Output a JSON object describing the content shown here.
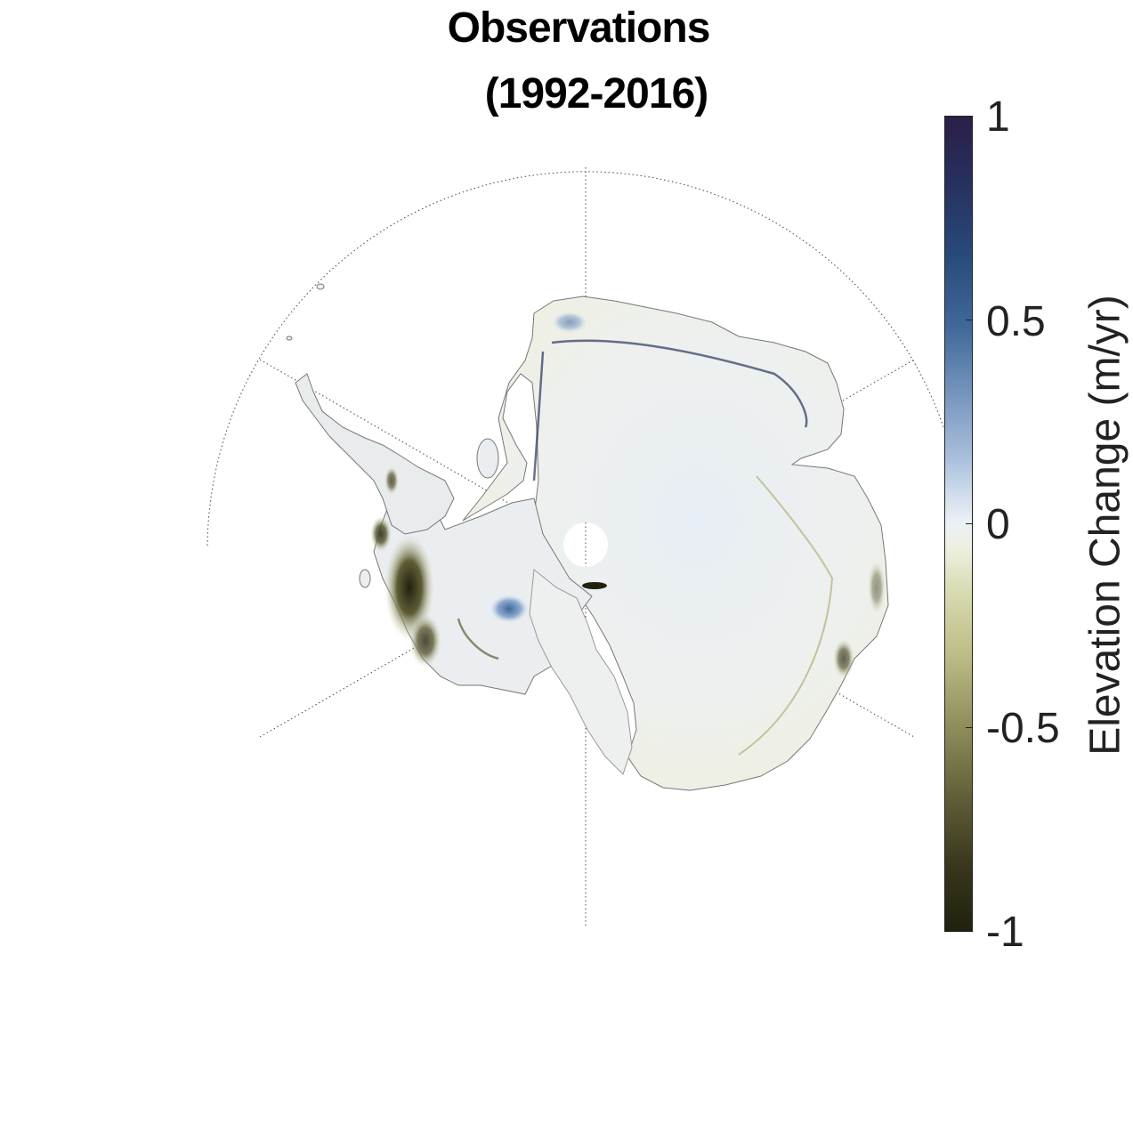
{
  "title": {
    "line1": "Observations",
    "line2": "(1992-2016)"
  },
  "colorbar": {
    "label": "Elevation Change (m/yr)",
    "ticks": [
      "1",
      "0.5",
      "0",
      "-0.5",
      "-1"
    ],
    "range": [
      -1,
      1
    ],
    "colors": {
      "max": "#2a1f47",
      "positive": "#40699a",
      "zero": "#ecf1f6",
      "negative": "#8e8d5a",
      "min": "#22210e"
    }
  },
  "map": {
    "region": "Antarctica",
    "projection": "south-polar-stereographic",
    "graticule": "dotted"
  }
}
